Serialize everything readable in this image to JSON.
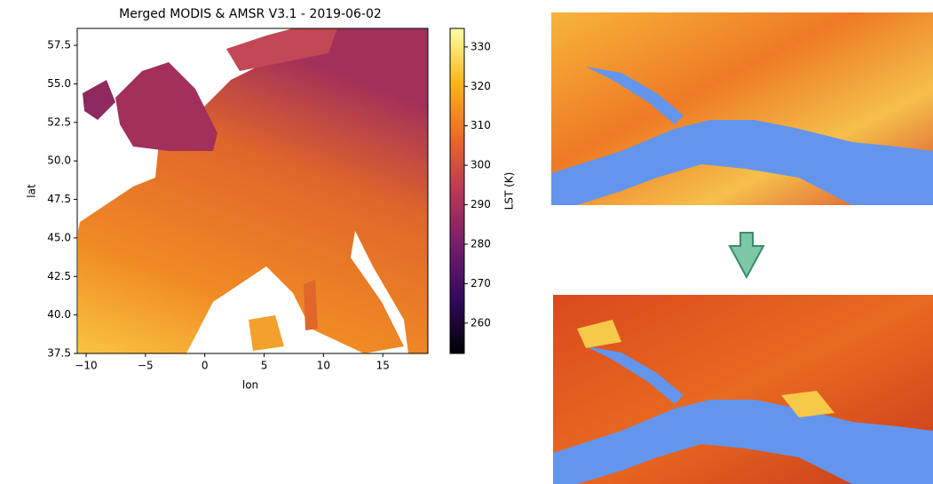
{
  "map_plot": {
    "title": "Merged MODIS & AMSR V3.1 - 2019-06-02",
    "xlabel": "lon",
    "ylabel": "lat",
    "xlim": [
      -10.75,
      18.8
    ],
    "xticks": [
      {
        "value": -10,
        "label": "−10"
      },
      {
        "value": -5,
        "label": "−5"
      },
      0,
      5,
      10,
      15
    ],
    "ylim": [
      37.5,
      58.6
    ],
    "yticks": [
      {
        "value": 37.5,
        "label": "37.5"
      },
      {
        "value": 40,
        "label": "40.0"
      },
      {
        "value": 42.5,
        "label": "42.5"
      },
      {
        "value": 45,
        "label": "45.0"
      },
      {
        "value": 47.5,
        "label": "47.5"
      },
      {
        "value": 50,
        "label": "50.0"
      },
      {
        "value": 52.5,
        "label": "52.5"
      },
      {
        "value": 55,
        "label": "55.0"
      },
      {
        "value": 57.5,
        "label": "57.5"
      }
    ],
    "colorbar": {
      "label": "LST (K)",
      "clim": [
        252.3,
        334.7
      ],
      "ticks": [
        260,
        270,
        280,
        290,
        300,
        310,
        320,
        330
      ],
      "colormap": [
        "#000004",
        "#320a5e",
        "#781c6d",
        "#bc3754",
        "#ed6925",
        "#fbb61a",
        "#fcffa4"
      ]
    }
  }
}
